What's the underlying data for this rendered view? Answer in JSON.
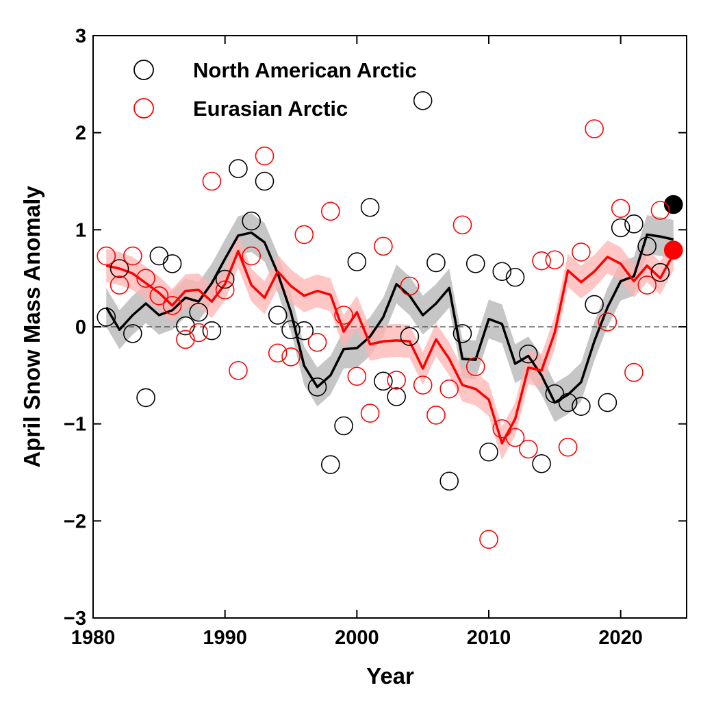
{
  "chart_data": {
    "type": "scatter",
    "xlabel": "Year",
    "ylabel": "April Snow Mass Anomaly",
    "x": [
      1981,
      1982,
      1983,
      1984,
      1985,
      1986,
      1987,
      1988,
      1989,
      1990,
      1991,
      1992,
      1993,
      1994,
      1995,
      1996,
      1997,
      1998,
      1999,
      2000,
      2001,
      2002,
      2003,
      2004,
      2005,
      2006,
      2007,
      2008,
      2009,
      2010,
      2011,
      2012,
      2013,
      2014,
      2015,
      2016,
      2017,
      2018,
      2019,
      2020,
      2021,
      2022,
      2023,
      2024
    ],
    "series": [
      {
        "name": "North American Arctic",
        "color": "#000000",
        "values": [
          0.1,
          0.6,
          -0.07,
          -0.73,
          0.73,
          0.65,
          0.01,
          0.15,
          -0.04,
          0.49,
          1.63,
          1.09,
          1.5,
          0.12,
          -0.03,
          -0.04,
          -0.62,
          -1.42,
          -1.02,
          0.67,
          1.23,
          -0.56,
          -0.72,
          -0.1,
          2.33,
          0.66,
          -1.59,
          -0.07,
          0.65,
          -1.29,
          0.57,
          0.51,
          -0.28,
          -1.41,
          -0.69,
          -0.78,
          -0.82,
          0.23,
          -0.78,
          1.02,
          1.06,
          0.83,
          0.56,
          1.26
        ]
      },
      {
        "name": "Eurasian Arctic",
        "color": "#ff0000",
        "values": [
          0.73,
          0.43,
          0.73,
          0.5,
          0.32,
          0.22,
          -0.13,
          -0.06,
          1.5,
          0.38,
          -0.45,
          0.73,
          1.76,
          -0.27,
          -0.31,
          0.95,
          -0.16,
          1.19,
          0.12,
          -0.51,
          -0.89,
          0.83,
          -0.55,
          0.42,
          -0.6,
          -0.91,
          -0.64,
          1.05,
          -0.41,
          -2.19,
          -1.05,
          -1.14,
          -1.26,
          0.68,
          0.69,
          -1.24,
          0.77,
          2.04,
          0.05,
          1.22,
          -0.47,
          0.43,
          1.2,
          0.79
        ]
      }
    ],
    "lines": [
      {
        "color": "#000000",
        "band_color": "#b3b3b3",
        "band": 0.2,
        "values": [
          0.2,
          -0.03,
          0.12,
          0.24,
          0.12,
          0.17,
          0.3,
          0.26,
          0.45,
          0.7,
          0.94,
          0.97,
          0.87,
          0.55,
          0.15,
          -0.4,
          -0.62,
          -0.5,
          -0.23,
          -0.22,
          -0.1,
          0.1,
          0.44,
          0.32,
          0.12,
          0.24,
          0.4,
          -0.33,
          -0.34,
          0.08,
          0.03,
          -0.38,
          -0.3,
          -0.5,
          -0.78,
          -0.7,
          -0.57,
          -0.15,
          0.2,
          0.47,
          0.52,
          0.95,
          0.93,
          0.9
        ]
      },
      {
        "color": "#ff0000",
        "band_color": "#ffb3b3",
        "band": 0.17,
        "values": [
          0.63,
          0.6,
          0.55,
          0.45,
          0.35,
          0.22,
          0.37,
          0.38,
          0.26,
          0.44,
          0.78,
          0.43,
          0.3,
          0.57,
          0.42,
          0.32,
          0.37,
          0.33,
          -0.05,
          0.15,
          -0.18,
          -0.15,
          -0.14,
          -0.15,
          -0.43,
          -0.13,
          -0.33,
          -0.6,
          -0.64,
          -0.75,
          -1.2,
          -0.95,
          -0.42,
          -0.45,
          -0.06,
          0.58,
          0.46,
          0.57,
          0.72,
          0.65,
          0.47,
          0.63,
          0.5,
          0.75
        ]
      }
    ],
    "highlight_last": true,
    "zero_line": true,
    "legend": "upper left",
    "xlim": [
      1980,
      2025
    ],
    "xticks": [
      1980,
      1990,
      2000,
      2010,
      2020
    ],
    "ylim": [
      -3,
      3
    ],
    "yticks": [
      {
        "value": -3,
        "label": "−3"
      },
      {
        "value": -2,
        "label": "−2"
      },
      {
        "value": -1,
        "label": "−1"
      },
      0,
      1,
      2,
      3
    ]
  }
}
